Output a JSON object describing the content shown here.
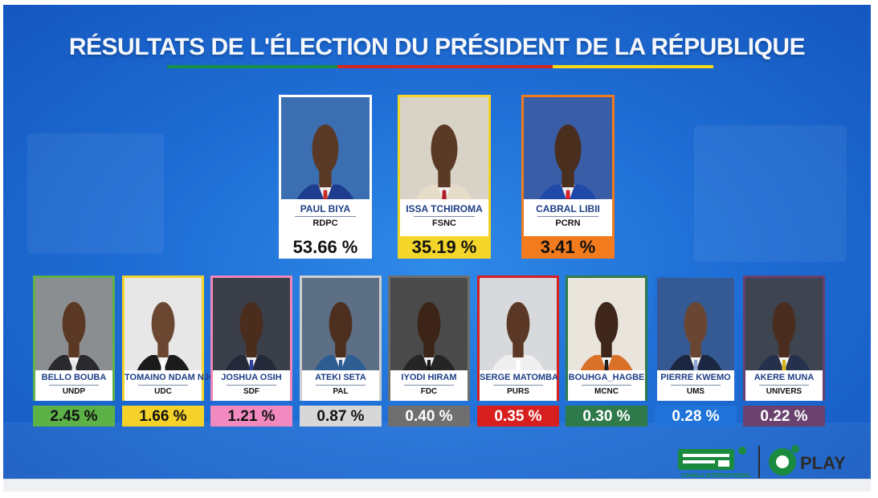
{
  "title": "RÉSULTATS DE L'ÉLECTION DU PRÉSIDENT DE LA RÉPUBLIQUE",
  "colors": {
    "flag_green": "#14904a",
    "flag_red": "#d7261e",
    "flag_yellow": "#f3d81b",
    "name_text": "#1d3e86"
  },
  "top_candidates": [
    {
      "name": "PAUL BIYA",
      "party": "RDPC",
      "percent": "53.66 %",
      "value": 53.66,
      "border": "#ffffff",
      "pct_bg": "#ffffff",
      "pct_color": "#111111",
      "suit": "#1e3d8f",
      "tie": "#c82d2d",
      "skin": "#5a3a26",
      "photo_bg": "#3b6fb2"
    },
    {
      "name": "ISSA TCHIROMA",
      "party": "FSNC",
      "percent": "35.19 %",
      "value": 35.19,
      "border": "#f2d42a",
      "pct_bg": "#f4d52a",
      "pct_color": "#111111",
      "suit": "#e7dcc8",
      "tie": "#b01c2a",
      "skin": "#5b3a25",
      "photo_bg": "#d9d2c6"
    },
    {
      "name": "CABRAL LIBII",
      "party": "PCRN",
      "percent": "3.41 %",
      "value": 3.41,
      "border": "#f07a1e",
      "pct_bg": "#f17b1d",
      "pct_color": "#111111",
      "suit": "#2048a8",
      "tie": "#d8202a",
      "skin": "#4a2e1e",
      "photo_bg": "#3a5da8"
    }
  ],
  "candidates": [
    {
      "name": "BELLO BOUBA",
      "party": "UNDP",
      "percent": "2.45 %",
      "value": 2.45,
      "border": "#5fb24a",
      "pct_bg": "#5cb247",
      "pct_color": "#111111",
      "suit": "#2a2a2e",
      "tie": "#e6e6e6",
      "skin": "#5a3824",
      "photo_bg": "#8a8e90"
    },
    {
      "name": "TOMAINO NDAM NJOYA",
      "party": "UDC",
      "percent": "1.66 %",
      "value": 1.66,
      "border": "#f2d42a",
      "pct_bg": "#f5d229",
      "pct_color": "#111111",
      "suit": "#1b1b1b",
      "tie": "#ffffff",
      "skin": "#6b4631",
      "photo_bg": "#e7e7e7"
    },
    {
      "name": "JOSHUA OSIH",
      "party": "SDF",
      "percent": "1.21 %",
      "value": 1.21,
      "border": "#ef86b9",
      "pct_bg": "#f28ac0",
      "pct_color": "#111111",
      "suit": "#232a3a",
      "tie": "#2f3f9a",
      "skin": "#4b2d1e",
      "photo_bg": "#3a3f4a"
    },
    {
      "name": "ATEKI SETA",
      "party": "PAL",
      "percent": "0.87 %",
      "value": 0.87,
      "border": "#cfcfcf",
      "pct_bg": "#d7d7d7",
      "pct_color": "#111111",
      "suit": "#2d5d93",
      "tie": "#2d5d93",
      "skin": "#4c2f1f",
      "photo_bg": "#5d6f85"
    },
    {
      "name": "IYODI HIRAM",
      "party": "FDC",
      "percent": "0.40 %",
      "value": 0.4,
      "border": "#6e6e6e",
      "pct_bg": "#6f6f6f",
      "pct_color": "#ffffff",
      "suit": "#252525",
      "tie": "#1a1a1a",
      "skin": "#3c2418",
      "photo_bg": "#4a4a4a"
    },
    {
      "name": "SERGE MATOMBA",
      "party": "PURS",
      "percent": "0.35 %",
      "value": 0.35,
      "border": "#d42020",
      "pct_bg": "#d81f1f",
      "pct_color": "#ffffff",
      "suit": "#efefef",
      "tie": "#ffffff",
      "skin": "#5a3825",
      "photo_bg": "#d7d9dc"
    },
    {
      "name": "BOUHGA_HAGBE",
      "party": "MCNC",
      "percent": "0.30 %",
      "value": 0.3,
      "border": "#2f7a4a",
      "pct_bg": "#2e7a4b",
      "pct_color": "#ffffff",
      "suit": "#d9712a",
      "tie": "#1f1f1f",
      "skin": "#3f261a",
      "photo_bg": "#e9e4dc"
    },
    {
      "name": "PIERRE KWEMO",
      "party": "UMS",
      "percent": "0.28 %",
      "value": 0.28,
      "border": "#1f6fd6",
      "pct_bg": "#1f73da",
      "pct_color": "#ffffff",
      "suit": "#1b2740",
      "tie": "#8fa8d6",
      "skin": "#6a4532",
      "photo_bg": "#355a93"
    },
    {
      "name": "AKERE MUNA",
      "party": "UNIVERS",
      "percent": "0.22 %",
      "value": 0.22,
      "border": "#6a3f6e",
      "pct_bg": "#6a416f",
      "pct_color": "#ffffff",
      "suit": "#25304a",
      "tie": "#d6b51c",
      "skin": "#4a2d1e",
      "photo_bg": "#3e4450"
    }
  ],
  "logos": {
    "canal2_caption": "CANAL2 INTERNATIONAL",
    "play_label": "PLAY"
  }
}
